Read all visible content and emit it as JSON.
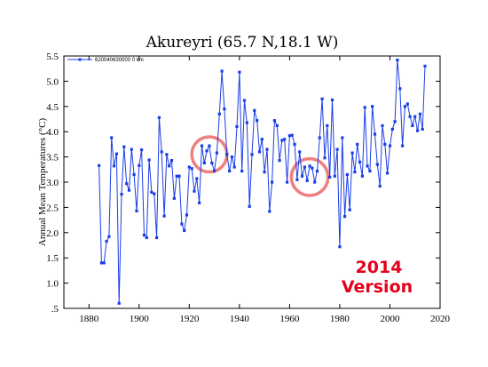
{
  "chart_data": {
    "type": "line",
    "title": "Akureyri (65.7 N,18.1 W)",
    "xlabel": "",
    "ylabel": "Annual Mean Temperatures (°C)",
    "xlim": [
      1870,
      2020
    ],
    "ylim": [
      0.5,
      5.5
    ],
    "x_ticks": [
      "1880",
      "1900",
      "1920",
      "1940",
      "1960",
      "1980",
      "2000",
      "2020"
    ],
    "y_ticks": [
      ".5",
      "1.0",
      "1.5",
      "2.0",
      "2.5",
      "3.0",
      "3.5",
      "4.0",
      "4.5",
      "5.0",
      "5.5"
    ],
    "grid": false,
    "legend": {
      "placement": "top-left",
      "label": "620040630000 0 km"
    },
    "series": [
      {
        "name": "620040630000 0 km",
        "color": "#1a3ee6",
        "marker": "square",
        "x": [
          1884,
          1885,
          1886,
          1887,
          1888,
          1889,
          1890,
          1891,
          1892,
          1893,
          1894,
          1895,
          1896,
          1897,
          1898,
          1899,
          1900,
          1901,
          1902,
          1903,
          1904,
          1905,
          1906,
          1907,
          1908,
          1909,
          1910,
          1911,
          1912,
          1913,
          1914,
          1915,
          1916,
          1917,
          1918,
          1919,
          1920,
          1921,
          1922,
          1923,
          1924,
          1925,
          1926,
          1927,
          1928,
          1929,
          1930,
          1931,
          1932,
          1933,
          1934,
          1935,
          1936,
          1937,
          1938,
          1939,
          1940,
          1941,
          1942,
          1943,
          1944,
          1945,
          1946,
          1947,
          1948,
          1949,
          1950,
          1951,
          1952,
          1953,
          1954,
          1955,
          1956,
          1957,
          1958,
          1959,
          1960,
          1961,
          1962,
          1963,
          1964,
          1965,
          1966,
          1967,
          1968,
          1969,
          1970,
          1971,
          1972,
          1973,
          1974,
          1975,
          1976,
          1977,
          1978,
          1979,
          1980,
          1981,
          1982,
          1983,
          1984,
          1985,
          1986,
          1987,
          1988,
          1989,
          1990,
          1991,
          1992,
          1993,
          1994,
          1995,
          1996,
          1997,
          1998,
          1999,
          2000,
          2001,
          2002,
          2003,
          2004,
          2005,
          2006,
          2007,
          2008,
          2009,
          2010,
          2011,
          2012,
          2013,
          2014
        ],
        "values": [
          3.33,
          1.4,
          1.4,
          1.83,
          1.92,
          3.88,
          3.32,
          3.56,
          0.6,
          2.76,
          3.7,
          2.97,
          2.84,
          3.65,
          3.15,
          2.43,
          3.33,
          3.64,
          1.95,
          1.9,
          3.44,
          2.8,
          2.77,
          1.9,
          4.28,
          3.6,
          2.33,
          3.55,
          3.32,
          3.43,
          2.68,
          3.12,
          3.12,
          2.17,
          2.04,
          2.35,
          3.3,
          3.27,
          2.82,
          3.07,
          2.59,
          3.72,
          3.38,
          3.62,
          3.72,
          3.38,
          3.22,
          3.58,
          4.35,
          5.2,
          4.45,
          3.55,
          3.22,
          3.5,
          3.3,
          4.1,
          5.18,
          3.22,
          4.62,
          4.18,
          2.52,
          3.55,
          4.42,
          4.22,
          3.6,
          3.85,
          3.2,
          3.65,
          2.42,
          3.0,
          4.22,
          4.12,
          3.43,
          3.83,
          3.85,
          3.0,
          3.92,
          3.93,
          3.75,
          3.05,
          3.6,
          3.12,
          3.3,
          3.03,
          3.32,
          3.28,
          3.0,
          3.22,
          3.88,
          4.65,
          3.48,
          4.12,
          3.1,
          4.63,
          3.12,
          3.65,
          1.72,
          3.88,
          2.32,
          3.15,
          2.45,
          3.58,
          3.2,
          3.75,
          3.4,
          3.12,
          4.48,
          3.32,
          3.22,
          4.5,
          3.95,
          3.35,
          2.92,
          4.12,
          3.75,
          3.18,
          3.72,
          4.05,
          4.2,
          5.42,
          4.85,
          3.72,
          4.5,
          4.55,
          4.3,
          4.12,
          4.3,
          4.02,
          4.35,
          4.05,
          5.3
        ]
      }
    ],
    "annotations": {
      "highlight_color": "#f08080",
      "circles": [
        {
          "cx": 1928,
          "cy": 3.55,
          "r_years": 7
        },
        {
          "cx": 1968,
          "cy": 3.1,
          "r_years": 7.3
        }
      ],
      "stamp_lines": [
        "2014",
        "Version"
      ],
      "stamp_color": "#e5001b"
    }
  }
}
